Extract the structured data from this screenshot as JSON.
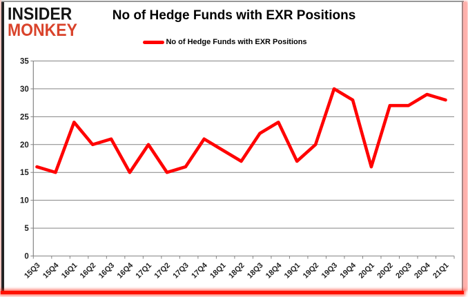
{
  "logo": {
    "line1": "INSIDER",
    "line2": "MONKEY"
  },
  "header": {
    "title": "No of Hedge Funds with EXR Positions"
  },
  "legend": {
    "label": "No of Hedge Funds with EXR Positions",
    "swatch_color": "#ff0000"
  },
  "colors": {
    "line": "#ff0000",
    "grid": "#838383",
    "axis": "#838383",
    "tick_label": "#1f1f1f",
    "logo_black": "#141414",
    "logo_red": "#d9432b",
    "border_glow": "#ff1000"
  },
  "chart_data": {
    "type": "line",
    "title": "No of Hedge Funds with EXR Positions",
    "legend_entries": [
      "No of Hedge Funds with EXR Positions"
    ],
    "legend_position": "top",
    "grid": true,
    "xlabel": "",
    "ylabel": "",
    "ylim": [
      0,
      35
    ],
    "ytick_step": 5,
    "yticks": [
      0,
      5,
      10,
      15,
      20,
      25,
      30,
      35
    ],
    "categories": [
      "15Q3",
      "15Q4",
      "16Q1",
      "16Q2",
      "16Q3",
      "16Q4",
      "17Q1",
      "17Q2",
      "17Q3",
      "17Q4",
      "18Q1",
      "18Q2",
      "18Q3",
      "18Q4",
      "19Q1",
      "19Q2",
      "19Q3",
      "19Q4",
      "20Q1",
      "20Q2",
      "20Q3",
      "20Q4",
      "21Q1"
    ],
    "series": [
      {
        "name": "No of Hedge Funds with EXR Positions",
        "values": [
          16,
          15,
          24,
          20,
          21,
          15,
          20,
          15,
          16,
          21,
          19,
          17,
          22,
          24,
          17,
          20,
          30,
          28,
          16,
          27,
          27,
          29,
          28
        ]
      }
    ]
  }
}
